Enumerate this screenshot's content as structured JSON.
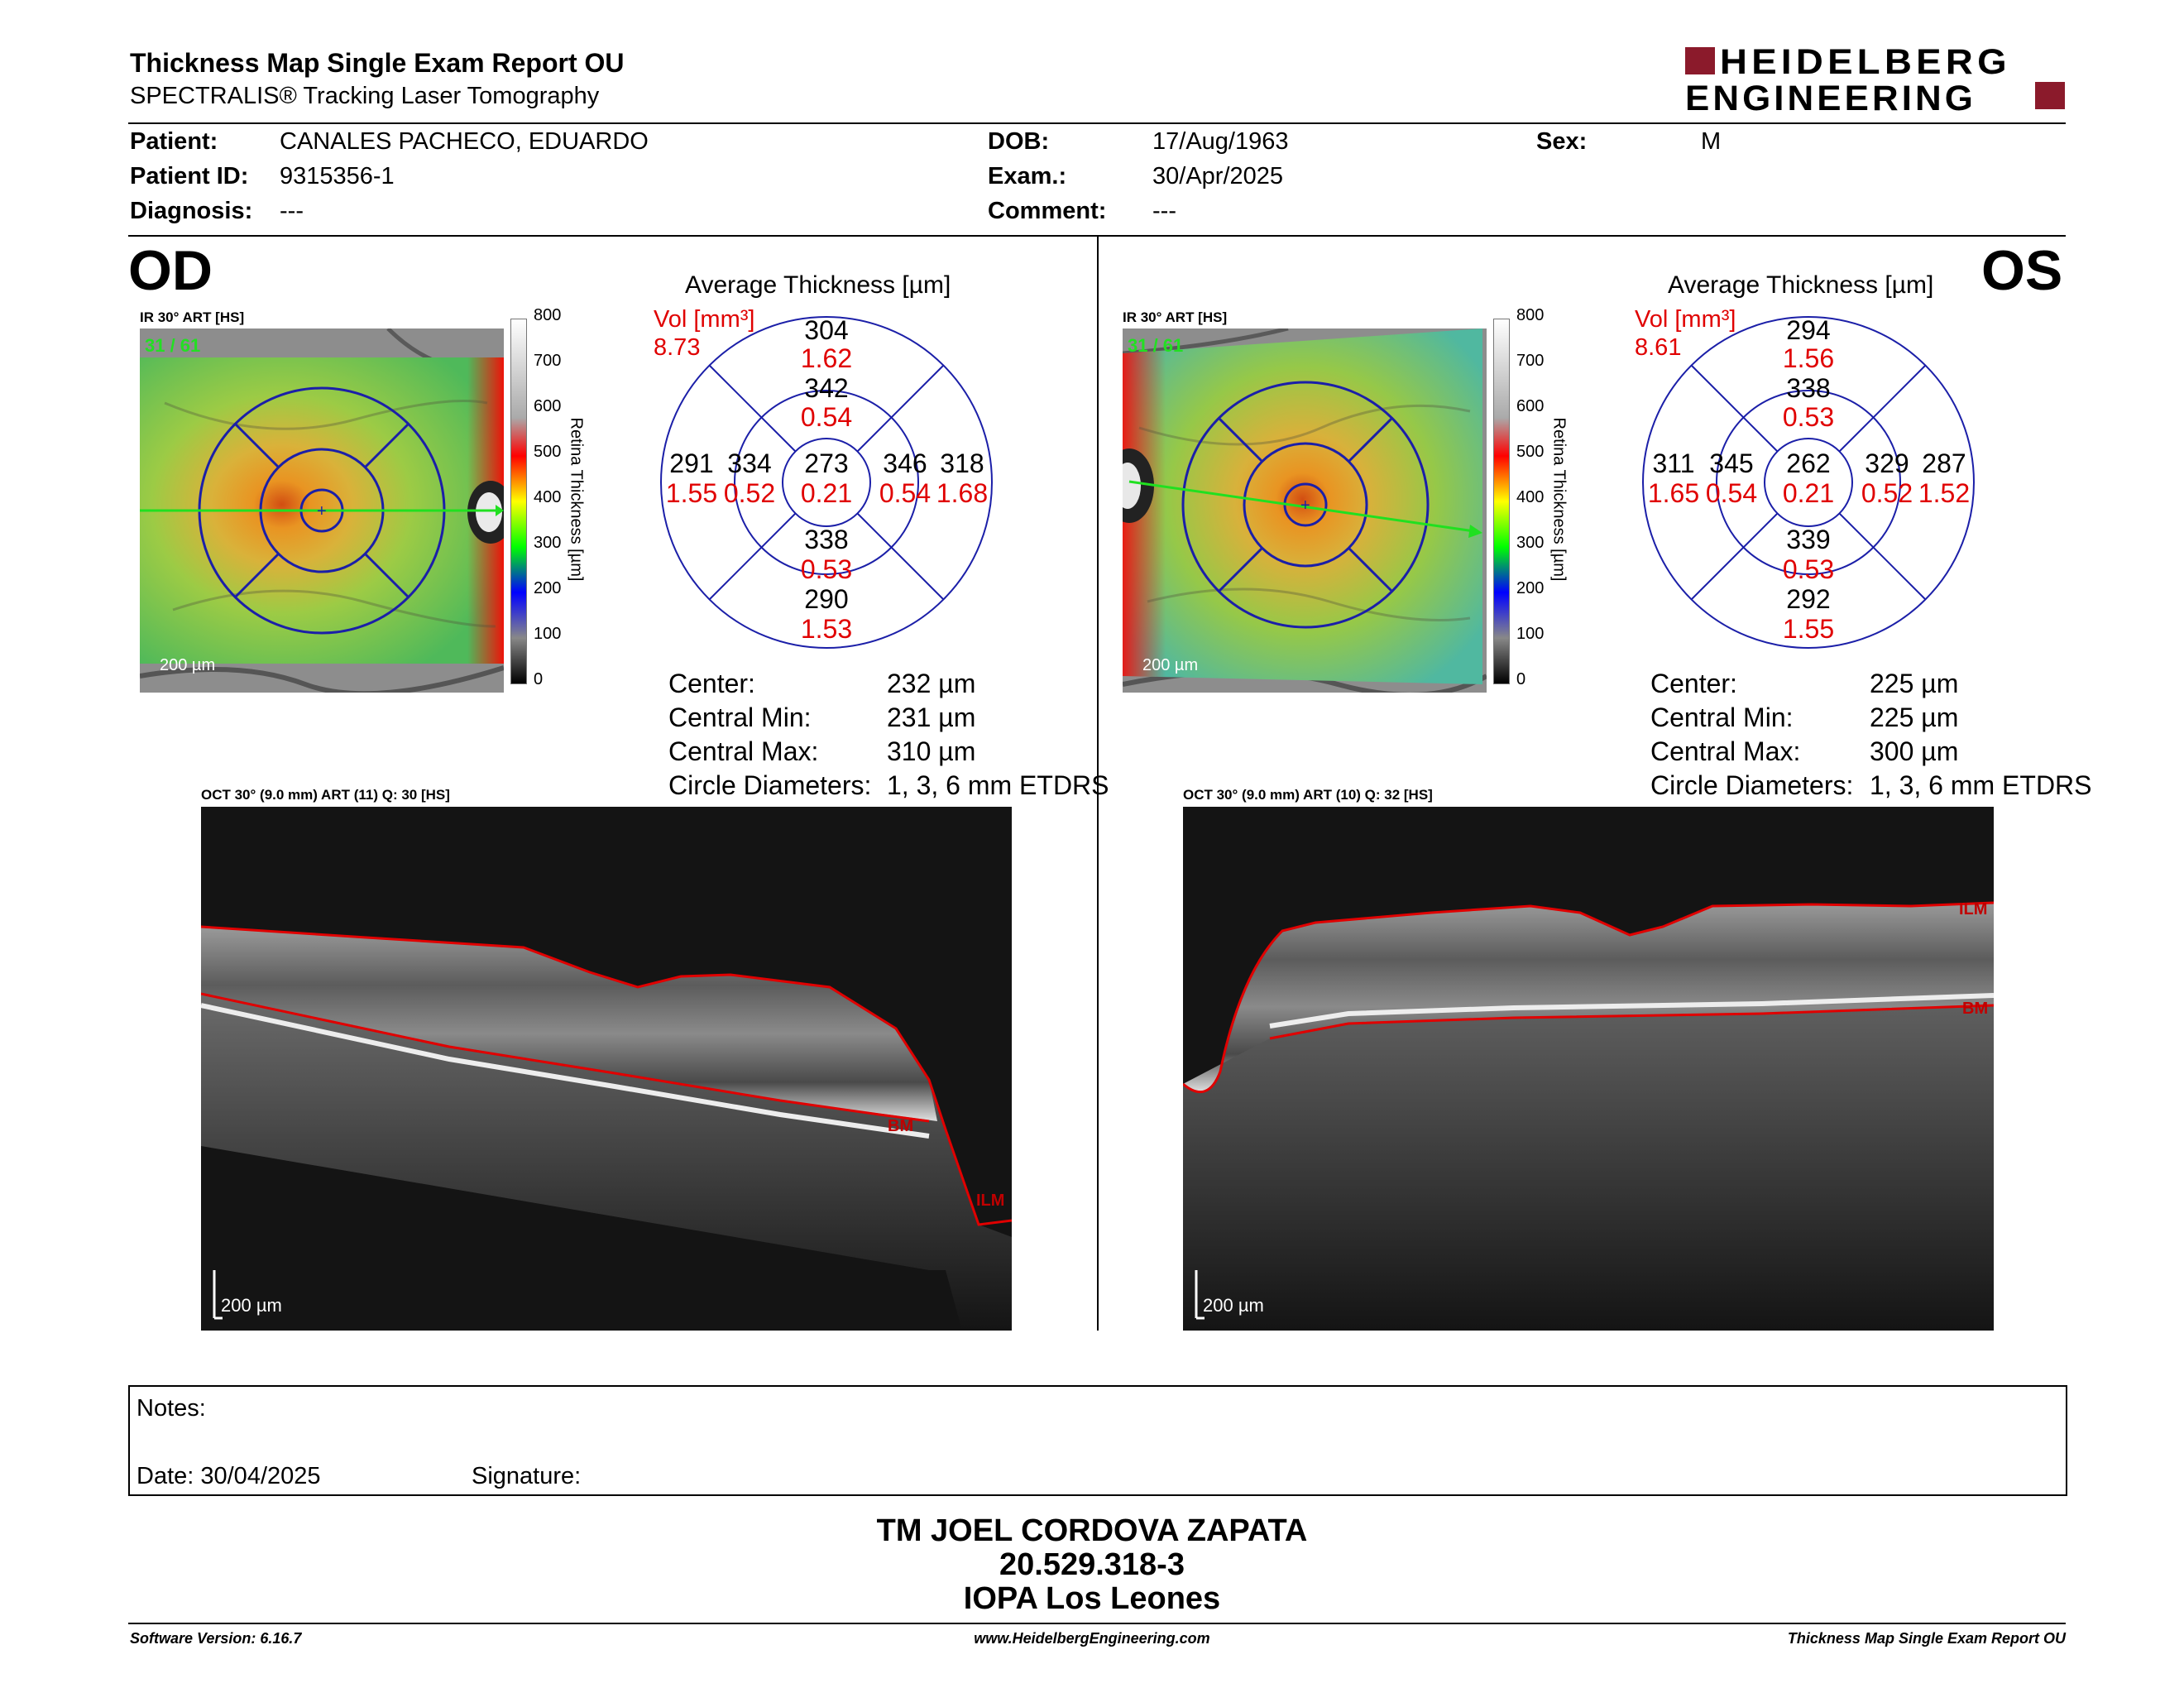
{
  "header": {
    "title": "Thickness Map Single Exam Report OU",
    "subtitle": "SPECTRALIS® Tracking Laser Tomography",
    "logo_line1": "HEIDELBERG",
    "logo_line2": "ENGINEERING"
  },
  "patient": {
    "patient_label": "Patient:",
    "patient_value": "CANALES PACHECO, EDUARDO",
    "id_label": "Patient ID:",
    "id_value": "9315356-1",
    "diagnosis_label": "Diagnosis:",
    "diagnosis_value": "---",
    "dob_label": "DOB:",
    "dob_value": "17/Aug/1963",
    "exam_label": "Exam.:",
    "exam_value": "30/Apr/2025",
    "comment_label": "Comment:",
    "comment_value": "---",
    "sex_label": "Sex:",
    "sex_value": "M"
  },
  "scale": {
    "ticks": [
      "800",
      "700",
      "600",
      "500",
      "400",
      "300",
      "200",
      "100",
      "0"
    ],
    "label": "Retina Thickness [µm]"
  },
  "od": {
    "eye": "OD",
    "ir_label": "IR 30° ART [HS]",
    "frames": "31 / 61",
    "scalebar": "200 µm",
    "avg_title": "Average Thickness [µm]",
    "vol_label": "Vol [mm³]",
    "vol_value": "8.73",
    "sectors": {
      "center": {
        "thickness": "273",
        "volume": "0.21"
      },
      "inner_superior": {
        "thickness": "342",
        "volume": "0.54"
      },
      "inner_nasal": {
        "thickness": "346",
        "volume": "0.54"
      },
      "inner_inferior": {
        "thickness": "338",
        "volume": "0.53"
      },
      "inner_temporal": {
        "thickness": "334",
        "volume": "0.52"
      },
      "outer_superior": {
        "thickness": "304",
        "volume": "1.62"
      },
      "outer_nasal": {
        "thickness": "318",
        "volume": "1.68"
      },
      "outer_inferior": {
        "thickness": "290",
        "volume": "1.53"
      },
      "outer_temporal": {
        "thickness": "291",
        "volume": "1.55"
      }
    },
    "stats": {
      "center_label": "Center:",
      "center_value": "232 µm",
      "min_label": "Central Min:",
      "min_value": "231 µm",
      "max_label": "Central Max:",
      "max_value": "310 µm",
      "diam_label": "Circle Diameters:",
      "diam_value": "1, 3, 6 mm ETDRS"
    },
    "oct_label": "OCT 30° (9.0 mm) ART (11) Q: 30 [HS]",
    "oct_scalebar": "200 µm",
    "ilm": "ILM",
    "bm": "BM"
  },
  "os": {
    "eye": "OS",
    "ir_label": "IR 30° ART [HS]",
    "frames": "31 / 61",
    "scalebar": "200 µm",
    "avg_title": "Average Thickness [µm]",
    "vol_label": "Vol [mm³]",
    "vol_value": "8.61",
    "sectors": {
      "center": {
        "thickness": "262",
        "volume": "0.21"
      },
      "inner_superior": {
        "thickness": "338",
        "volume": "0.53"
      },
      "inner_nasal": {
        "thickness": "345",
        "volume": "0.54"
      },
      "inner_inferior": {
        "thickness": "339",
        "volume": "0.53"
      },
      "inner_temporal": {
        "thickness": "329",
        "volume": "0.52"
      },
      "outer_superior": {
        "thickness": "294",
        "volume": "1.56"
      },
      "outer_nasal": {
        "thickness": "311",
        "volume": "1.65"
      },
      "outer_inferior": {
        "thickness": "292",
        "volume": "1.55"
      },
      "outer_temporal": {
        "thickness": "287",
        "volume": "1.52"
      }
    },
    "stats": {
      "center_label": "Center:",
      "center_value": "225 µm",
      "min_label": "Central Min:",
      "min_value": "225 µm",
      "max_label": "Central Max:",
      "max_value": "300 µm",
      "diam_label": "Circle Diameters:",
      "diam_value": "1, 3, 6 mm ETDRS"
    },
    "oct_label": "OCT 30° (9.0 mm) ART (10) Q: 32 [HS]",
    "oct_scalebar": "200 µm",
    "ilm": "ILM",
    "bm": "BM"
  },
  "notes": {
    "notes_label": "Notes:",
    "date_label": "Date: 30/04/2025",
    "signature_label": "Signature:"
  },
  "signatory": {
    "name": "TM JOEL CORDOVA ZAPATA",
    "rut": "20.529.318-3",
    "institution": "IOPA Los Leones"
  },
  "footer": {
    "software": "Software Version: 6.16.7",
    "website": "www.HeidelbergEngineering.com",
    "report": "Thickness Map Single Exam Report OU"
  },
  "colors": {
    "accent_red": "#8b1a2b",
    "volume_red": "#e00000",
    "grid_blue": "#1b1fa8"
  }
}
